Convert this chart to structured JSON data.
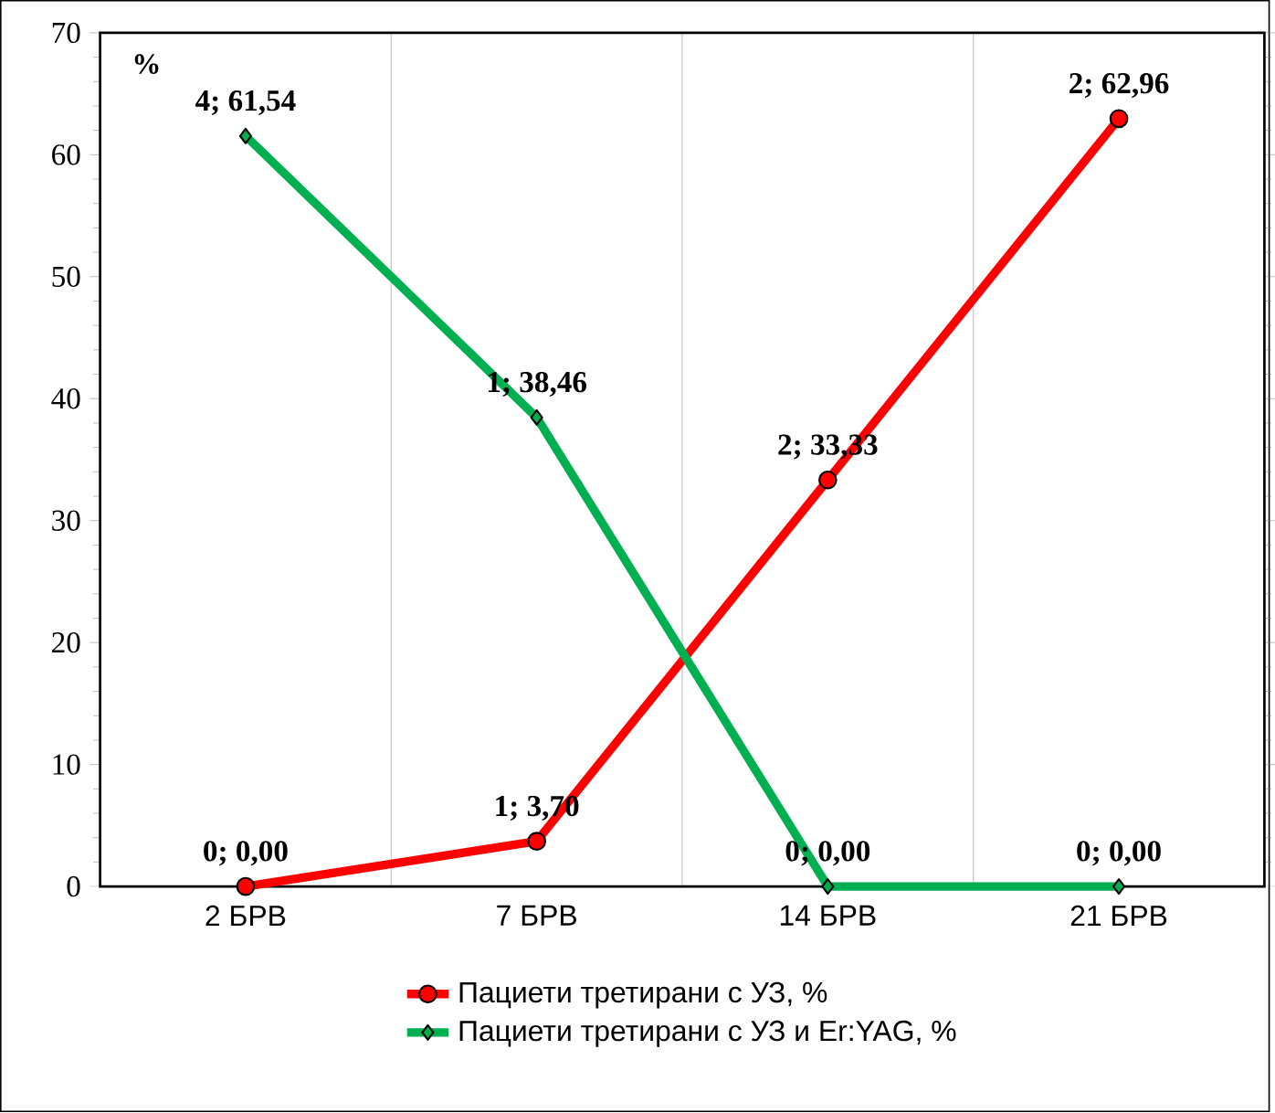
{
  "chart_data": {
    "type": "line",
    "ylabel": "%",
    "categories": [
      "2 БРВ",
      "7 БРВ",
      "14 БРВ",
      "21 БРВ"
    ],
    "series": [
      {
        "name": "Пациети третирани с УЗ, %",
        "color": "#ff0000",
        "marker": "circle",
        "values": [
          0,
          3.7,
          33.33,
          62.96
        ],
        "value_labels": [
          "0; 0,00",
          "1; 3,70",
          "2; 33,33",
          "2; 62,96"
        ]
      },
      {
        "name": "Пациети третирани с УЗ и Er:YAG, %",
        "color": "#00b050",
        "marker": "diamond",
        "values": [
          61.54,
          38.46,
          0,
          0
        ],
        "value_labels": [
          "4; 61,54",
          "1; 38,46",
          "0; 0,00",
          "0; 0,00"
        ]
      }
    ],
    "ylim": [
      0,
      70
    ],
    "yticks": [
      0,
      10,
      20,
      30,
      40,
      50,
      60,
      70
    ],
    "grid": "x",
    "legend": "bottom"
  }
}
